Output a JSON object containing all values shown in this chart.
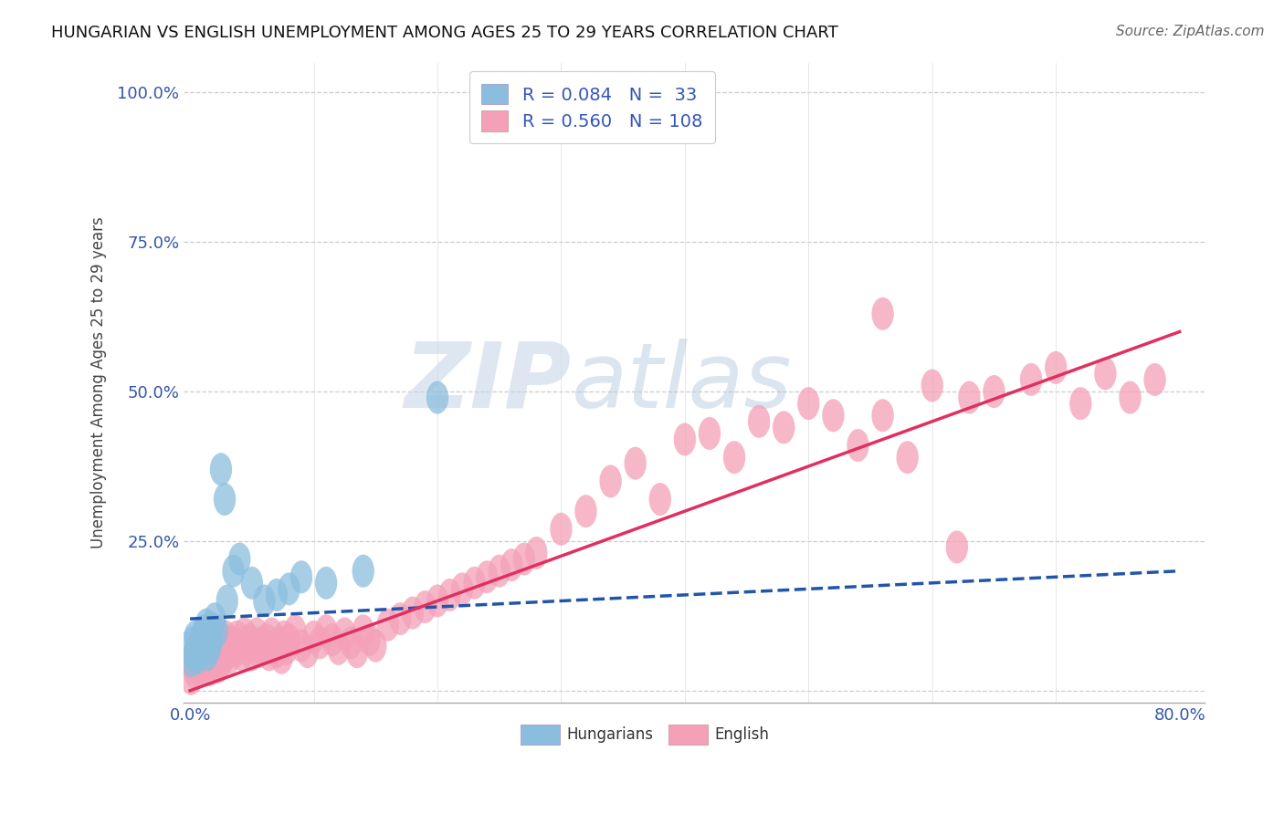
{
  "title": "HUNGARIAN VS ENGLISH UNEMPLOYMENT AMONG AGES 25 TO 29 YEARS CORRELATION CHART",
  "source": "Source: ZipAtlas.com",
  "ylabel": "Unemployment Among Ages 25 to 29 years",
  "xlim": [
    -0.005,
    0.82
  ],
  "ylim": [
    -0.02,
    1.05
  ],
  "hun_R": 0.084,
  "hun_N": 33,
  "eng_R": 0.56,
  "eng_N": 108,
  "hun_color": "#8bbede",
  "eng_color": "#f4a0b8",
  "hun_line_color": "#2255aa",
  "eng_line_color": "#e03060",
  "background_color": "#ffffff",
  "hun_x": [
    0.001,
    0.002,
    0.003,
    0.004,
    0.005,
    0.006,
    0.007,
    0.008,
    0.009,
    0.01,
    0.011,
    0.012,
    0.013,
    0.014,
    0.015,
    0.016,
    0.017,
    0.018,
    0.02,
    0.022,
    0.025,
    0.028,
    0.03,
    0.035,
    0.04,
    0.05,
    0.06,
    0.07,
    0.08,
    0.09,
    0.11,
    0.14,
    0.2
  ],
  "hun_y": [
    0.05,
    0.08,
    0.06,
    0.09,
    0.07,
    0.055,
    0.075,
    0.085,
    0.065,
    0.095,
    0.1,
    0.08,
    0.11,
    0.06,
    0.09,
    0.07,
    0.105,
    0.085,
    0.12,
    0.1,
    0.37,
    0.32,
    0.15,
    0.2,
    0.22,
    0.18,
    0.15,
    0.16,
    0.17,
    0.19,
    0.18,
    0.2,
    0.49
  ],
  "eng_x": [
    0.001,
    0.002,
    0.003,
    0.004,
    0.005,
    0.006,
    0.007,
    0.008,
    0.009,
    0.01,
    0.011,
    0.012,
    0.013,
    0.014,
    0.015,
    0.016,
    0.017,
    0.018,
    0.019,
    0.02,
    0.021,
    0.022,
    0.023,
    0.024,
    0.025,
    0.026,
    0.027,
    0.028,
    0.029,
    0.03,
    0.032,
    0.034,
    0.036,
    0.038,
    0.04,
    0.042,
    0.044,
    0.046,
    0.048,
    0.05,
    0.052,
    0.054,
    0.056,
    0.058,
    0.06,
    0.062,
    0.064,
    0.066,
    0.068,
    0.07,
    0.072,
    0.074,
    0.076,
    0.078,
    0.08,
    0.085,
    0.09,
    0.095,
    0.1,
    0.105,
    0.11,
    0.115,
    0.12,
    0.125,
    0.13,
    0.135,
    0.14,
    0.145,
    0.15,
    0.16,
    0.17,
    0.18,
    0.19,
    0.2,
    0.21,
    0.22,
    0.23,
    0.24,
    0.25,
    0.26,
    0.27,
    0.28,
    0.3,
    0.32,
    0.34,
    0.36,
    0.38,
    0.4,
    0.42,
    0.44,
    0.46,
    0.48,
    0.5,
    0.52,
    0.54,
    0.56,
    0.58,
    0.6,
    0.63,
    0.65,
    0.68,
    0.7,
    0.72,
    0.74,
    0.76,
    0.78,
    0.56,
    0.62
  ],
  "eng_y": [
    0.02,
    0.04,
    0.06,
    0.03,
    0.05,
    0.07,
    0.045,
    0.055,
    0.035,
    0.065,
    0.075,
    0.04,
    0.08,
    0.05,
    0.09,
    0.035,
    0.06,
    0.07,
    0.045,
    0.085,
    0.055,
    0.095,
    0.04,
    0.065,
    0.075,
    0.05,
    0.085,
    0.06,
    0.09,
    0.07,
    0.055,
    0.08,
    0.065,
    0.09,
    0.075,
    0.06,
    0.095,
    0.07,
    0.085,
    0.06,
    0.075,
    0.095,
    0.065,
    0.08,
    0.07,
    0.085,
    0.06,
    0.095,
    0.075,
    0.065,
    0.08,
    0.055,
    0.09,
    0.07,
    0.085,
    0.1,
    0.075,
    0.065,
    0.09,
    0.08,
    0.1,
    0.085,
    0.07,
    0.095,
    0.08,
    0.065,
    0.1,
    0.085,
    0.075,
    0.11,
    0.12,
    0.13,
    0.14,
    0.15,
    0.16,
    0.17,
    0.18,
    0.19,
    0.2,
    0.21,
    0.22,
    0.23,
    0.27,
    0.3,
    0.35,
    0.38,
    0.32,
    0.42,
    0.43,
    0.39,
    0.45,
    0.44,
    0.48,
    0.46,
    0.41,
    0.46,
    0.39,
    0.51,
    0.49,
    0.5,
    0.52,
    0.54,
    0.48,
    0.53,
    0.49,
    0.52,
    0.63,
    0.24
  ],
  "hun_line_x": [
    0.0,
    0.8
  ],
  "hun_line_y": [
    0.12,
    0.2
  ],
  "eng_line_x": [
    0.0,
    0.8
  ],
  "eng_line_y": [
    0.0,
    0.6
  ]
}
